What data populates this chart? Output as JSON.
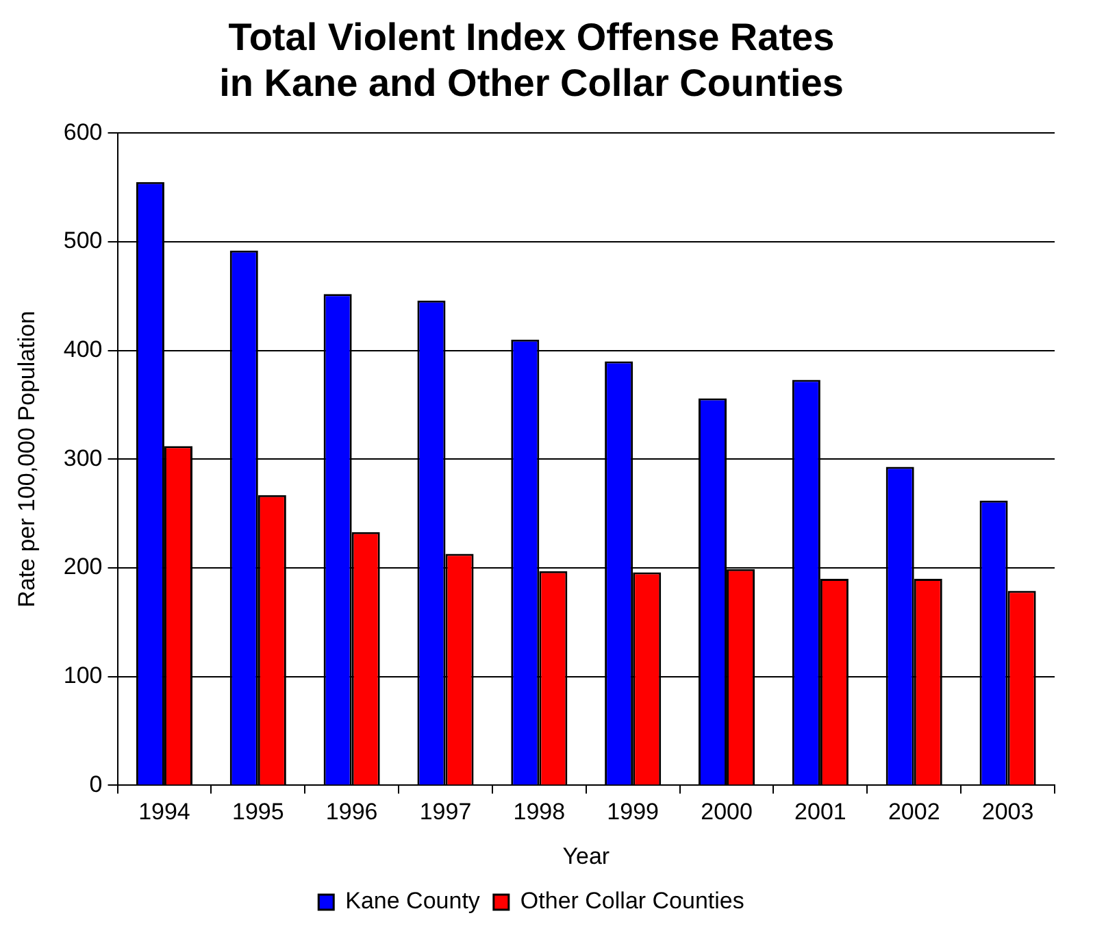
{
  "chart_data": {
    "type": "bar",
    "title": [
      "Total Violent Index Offense Rates",
      "in Kane and Other Collar Counties"
    ],
    "xlabel": "Year",
    "ylabel": "Rate per 100,000 Population",
    "categories": [
      "1994",
      "1995",
      "1996",
      "1997",
      "1998",
      "1999",
      "2000",
      "2001",
      "2002",
      "2003"
    ],
    "series": [
      {
        "name": "Kane County",
        "color": "#0000ff",
        "values": [
          555,
          492,
          452,
          446,
          410,
          390,
          356,
          373,
          293,
          262
        ]
      },
      {
        "name": "Other Collar Counties",
        "color": "#ff0000",
        "values": [
          312,
          267,
          233,
          213,
          197,
          196,
          199,
          190,
          190,
          179
        ]
      }
    ],
    "ylim": [
      0,
      600
    ],
    "yticks": [
      0,
      100,
      200,
      300,
      400,
      500,
      600
    ],
    "grid": "y",
    "legend": "bottom"
  }
}
